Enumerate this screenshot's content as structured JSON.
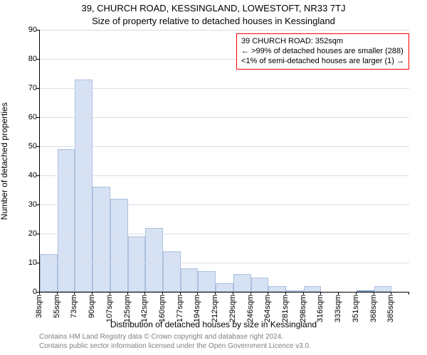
{
  "title_main": "39, CHURCH ROAD, KESSINGLAND, LOWESTOFT, NR33 7TJ",
  "title_sub": "Size of property relative to detached houses in Kessingland",
  "y_axis_label": "Number of detached properties",
  "x_axis_label": "Distribution of detached houses by size in Kessingland",
  "footnote1": "Contains HM Land Registry data © Crown copyright and database right 2024.",
  "footnote2": "Contains public sector information licensed under the Open Government Licence v3.0.",
  "chart": {
    "type": "histogram",
    "ylim": [
      0,
      90
    ],
    "ytick_step": 10,
    "bar_fill": "#d6e2f4",
    "bar_stroke": "#acbfdf",
    "highlight_fill": "#e3ebf7",
    "highlight_stroke": "#7f97c4",
    "grid_color": "#d7deea",
    "background_color": "#ffffff",
    "x_ticks": [
      "38sqm",
      "55sqm",
      "73sqm",
      "90sqm",
      "107sqm",
      "125sqm",
      "142sqm",
      "160sqm",
      "177sqm",
      "194sqm",
      "212sqm",
      "229sqm",
      "246sqm",
      "264sqm",
      "281sqm",
      "298sqm",
      "316sqm",
      "333sqm",
      "351sqm",
      "368sqm",
      "385sqm"
    ],
    "values": [
      13,
      49,
      73,
      36,
      32,
      19,
      22,
      14,
      8,
      7,
      3,
      6,
      5,
      2,
      0.5,
      2,
      0,
      0,
      0.5,
      2,
      0
    ],
    "highlight_index": 18
  },
  "annotation": {
    "border_color": "#ff0000",
    "line1": "39 CHURCH ROAD: 352sqm",
    "line2": "← >99% of detached houses are smaller (288)",
    "line3": "<1% of semi-detached houses are larger (1) →"
  }
}
